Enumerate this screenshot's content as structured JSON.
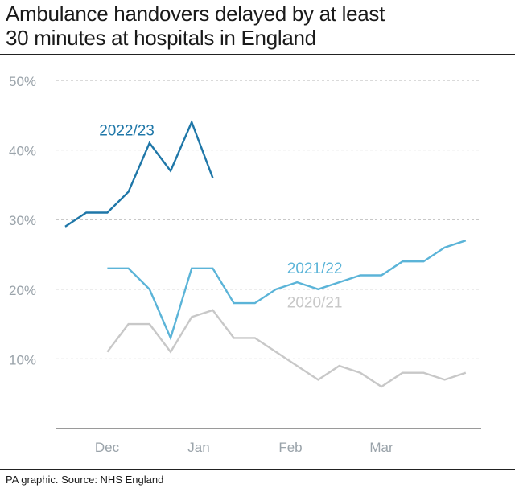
{
  "title_line1": "Ambulance handovers delayed by at least",
  "title_line2": "30 minutes at hospitals in England",
  "source": "PA graphic. Source: NHS England",
  "chart_data": {
    "type": "line",
    "title": "Ambulance handovers delayed by at least 30 minutes at hospitals in England",
    "xlabel": "",
    "ylabel": "",
    "x_tick_labels": [
      "Dec",
      "Jan",
      "Feb",
      "Mar"
    ],
    "y_tick_labels": [
      "10%",
      "20%",
      "30%",
      "40%",
      "50%"
    ],
    "y_ticks": [
      10,
      20,
      30,
      40,
      50
    ],
    "ylim": [
      0,
      50
    ],
    "grid": true,
    "grid_style": "dashed horizontal",
    "legend": "inline labels",
    "series": [
      {
        "name": "2022/23",
        "color": "#1f77a8",
        "label_point": 1,
        "values": [
          29,
          31,
          31,
          34,
          41,
          37,
          44,
          36
        ]
      },
      {
        "name": "2021/22",
        "color": "#5bb4d8",
        "label_point": 9,
        "values": [
          null,
          null,
          23,
          23,
          20,
          13,
          23,
          23,
          18,
          18,
          20,
          21,
          20,
          21,
          22,
          22,
          24,
          24,
          26,
          27
        ]
      },
      {
        "name": "2020/21",
        "color": "#c8c8c8",
        "label_point": 9,
        "values": [
          null,
          null,
          11,
          15,
          15,
          11,
          16,
          17,
          13,
          13,
          11,
          9,
          7,
          9,
          8,
          6,
          8,
          8,
          7,
          8
        ]
      }
    ]
  }
}
